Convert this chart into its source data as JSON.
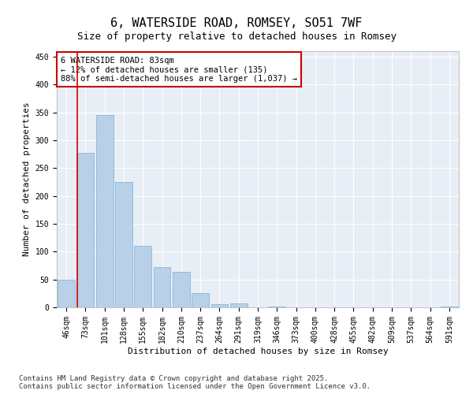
{
  "title_line1": "6, WATERSIDE ROAD, ROMSEY, SO51 7WF",
  "title_line2": "Size of property relative to detached houses in Romsey",
  "xlabel": "Distribution of detached houses by size in Romsey",
  "ylabel": "Number of detached properties",
  "categories": [
    "46sqm",
    "73sqm",
    "101sqm",
    "128sqm",
    "155sqm",
    "182sqm",
    "210sqm",
    "237sqm",
    "264sqm",
    "291sqm",
    "319sqm",
    "346sqm",
    "373sqm",
    "400sqm",
    "428sqm",
    "455sqm",
    "482sqm",
    "509sqm",
    "537sqm",
    "564sqm",
    "591sqm"
  ],
  "values": [
    50,
    278,
    345,
    225,
    110,
    72,
    63,
    25,
    5,
    7,
    0,
    2,
    0,
    0,
    0,
    0,
    0,
    0,
    0,
    0,
    2
  ],
  "bar_color": "#b8d0e8",
  "bar_edge_color": "#7aafd4",
  "vline_x_index": 1,
  "vline_color": "#cc0000",
  "annotation_text": "6 WATERSIDE ROAD: 83sqm\n← 12% of detached houses are smaller (135)\n88% of semi-detached houses are larger (1,037) →",
  "annotation_box_color": "#cc0000",
  "annotation_bg": "#ffffff",
  "ylim": [
    0,
    460
  ],
  "yticks": [
    0,
    50,
    100,
    150,
    200,
    250,
    300,
    350,
    400,
    450
  ],
  "bg_color": "#e8eef6",
  "footer_line1": "Contains HM Land Registry data © Crown copyright and database right 2025.",
  "footer_line2": "Contains public sector information licensed under the Open Government Licence v3.0.",
  "title_fontsize": 11,
  "subtitle_fontsize": 9,
  "axis_label_fontsize": 8,
  "tick_fontsize": 7,
  "annotation_fontsize": 7.5,
  "footer_fontsize": 6.5
}
